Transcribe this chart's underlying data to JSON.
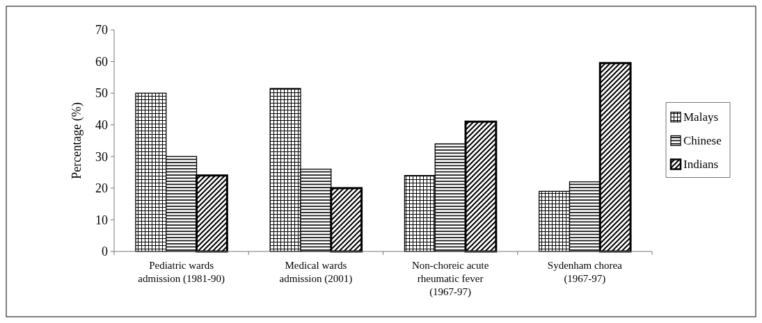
{
  "chart_data": {
    "type": "bar",
    "ylabel": "Percentage (%)",
    "categories": [
      "Pediatric wards admission (1981-90)",
      "Medical wards admission (2001)",
      "Non-choreic acute rheumatic fever (1967-97)",
      "Sydenham chorea (1967-97)"
    ],
    "series": [
      {
        "name": "Malays",
        "color": "#000000",
        "values": [
          50,
          51.5,
          24,
          19
        ]
      },
      {
        "name": "Chinese",
        "color": "#000000",
        "values": [
          30,
          26,
          34,
          22
        ]
      },
      {
        "name": "Indians",
        "color": "#000000",
        "values": [
          24,
          20,
          41,
          59.5
        ]
      }
    ],
    "ylim": [
      0,
      70
    ],
    "yticks": [
      0,
      10,
      20,
      30,
      40,
      50,
      60,
      70
    ],
    "legend": "right",
    "grid": false
  }
}
